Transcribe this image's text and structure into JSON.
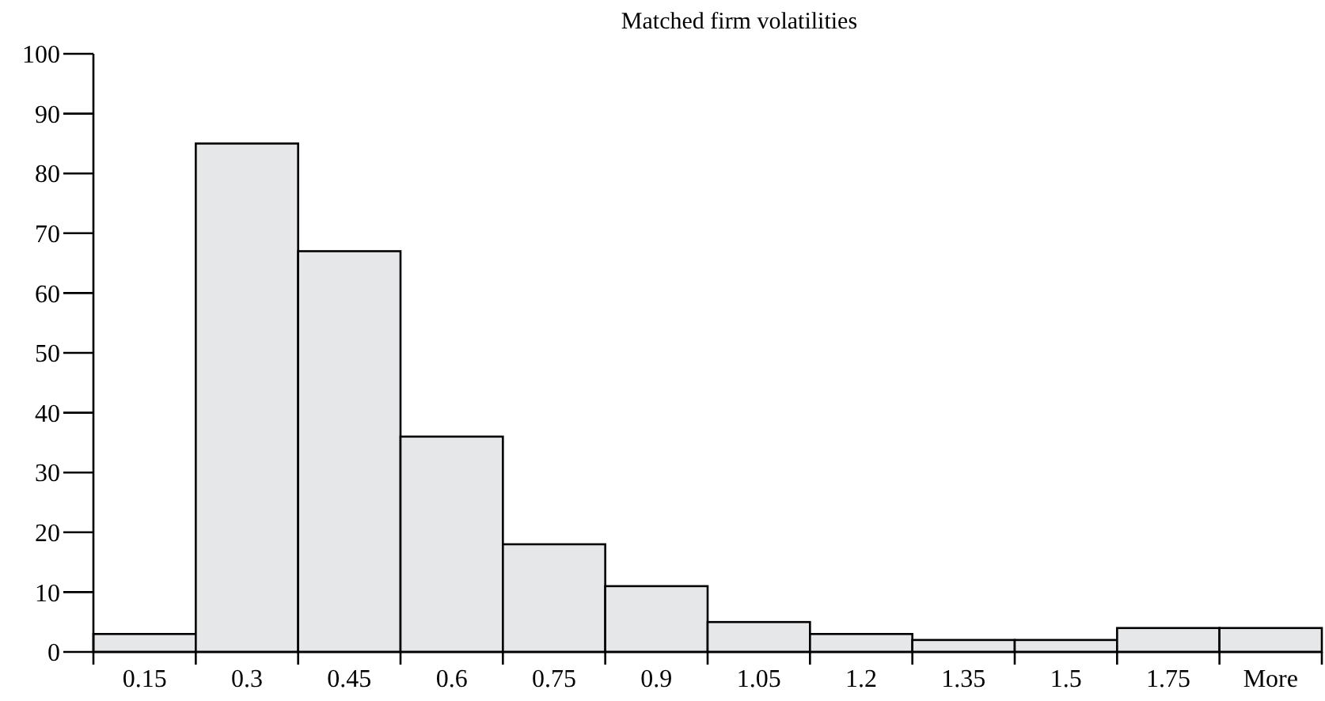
{
  "chart_data": {
    "type": "bar",
    "title": "Matched firm volatilities",
    "categories": [
      "0.15",
      "0.3",
      "0.45",
      "0.6",
      "0.75",
      "0.9",
      "1.05",
      "1.2",
      "1.35",
      "1.5",
      "1.75",
      "More"
    ],
    "values": [
      3,
      85,
      67,
      36,
      18,
      11,
      5,
      3,
      2,
      2,
      4,
      4
    ],
    "color": "#e6e7e8",
    "ylim": [
      0,
      100
    ],
    "yticks": [
      0,
      10,
      20,
      30,
      40,
      50,
      60,
      70,
      80,
      90,
      100
    ],
    "grid": false
  }
}
